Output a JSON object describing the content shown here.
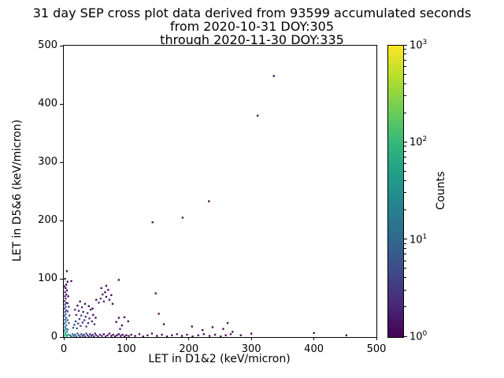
{
  "chart_data": {
    "type": "scatter",
    "title_lines": [
      "31 day SEP cross plot data derived from 93599 accumulated seconds",
      "from 2020-10-31 DOY:305",
      "through 2020-11-30 DOY:335"
    ],
    "xlabel": "LET in D1&2 (keV/micron)",
    "ylabel": "LET in D5&6 (keV/micron)",
    "xlim": [
      0,
      500
    ],
    "ylim": [
      0,
      500
    ],
    "xticks": [
      0,
      100,
      200,
      300,
      400,
      500
    ],
    "yticks": [
      0,
      100,
      200,
      300,
      400,
      500
    ],
    "grid": false,
    "colorbar": {
      "label": "Counts",
      "scale": "log",
      "min": 1,
      "max": 1000,
      "tick_exponents": [
        0,
        1,
        2,
        3
      ],
      "colormap": [
        "#440154",
        "#482878",
        "#3e4a89",
        "#31688e",
        "#26828e",
        "#1f9e89",
        "#35b779",
        "#6dcd59",
        "#b4de2c",
        "#fde725"
      ]
    },
    "points": [
      [
        1,
        2,
        120
      ],
      [
        3,
        4,
        70
      ],
      [
        2,
        7,
        50
      ],
      [
        5,
        2,
        60
      ],
      [
        7,
        4,
        30
      ],
      [
        1,
        11,
        30
      ],
      [
        3,
        14,
        22
      ],
      [
        5,
        9,
        25
      ],
      [
        2,
        17,
        18
      ],
      [
        4,
        20,
        14
      ],
      [
        1,
        23,
        12
      ],
      [
        3,
        26,
        10
      ],
      [
        6,
        13,
        12
      ],
      [
        2,
        30,
        9
      ],
      [
        4,
        33,
        8
      ],
      [
        1,
        36,
        7
      ],
      [
        3,
        39,
        6
      ],
      [
        6,
        29,
        6
      ],
      [
        2,
        43,
        5
      ],
      [
        4,
        46,
        5
      ],
      [
        1,
        49,
        4
      ],
      [
        3,
        52,
        4
      ],
      [
        6,
        44,
        3
      ],
      [
        2,
        56,
        3
      ],
      [
        4,
        59,
        3
      ],
      [
        1,
        62,
        3
      ],
      [
        3,
        66,
        2
      ],
      [
        6,
        58,
        2
      ],
      [
        2,
        70,
        2
      ],
      [
        4,
        73,
        2
      ],
      [
        2,
        77,
        2
      ],
      [
        5,
        80,
        1
      ],
      [
        3,
        84,
        1
      ],
      [
        1,
        87,
        1
      ],
      [
        4,
        90,
        1
      ],
      [
        7,
        70,
        1
      ],
      [
        8,
        52,
        2
      ],
      [
        8,
        24,
        6
      ],
      [
        9,
        37,
        3
      ],
      [
        6,
        95,
        1
      ],
      [
        12,
        96,
        1
      ],
      [
        5,
        113,
        1
      ],
      [
        2,
        100,
        1
      ],
      [
        10,
        3,
        18
      ],
      [
        12,
        1,
        14
      ],
      [
        14,
        5,
        11
      ],
      [
        16,
        2,
        10
      ],
      [
        18,
        4,
        8
      ],
      [
        20,
        1,
        9
      ],
      [
        22,
        6,
        7
      ],
      [
        24,
        3,
        6
      ],
      [
        26,
        1,
        6
      ],
      [
        28,
        5,
        5
      ],
      [
        30,
        2,
        5
      ],
      [
        32,
        4,
        4
      ],
      [
        34,
        1,
        4
      ],
      [
        36,
        6,
        4
      ],
      [
        38,
        3,
        3
      ],
      [
        40,
        1,
        4
      ],
      [
        42,
        5,
        3
      ],
      [
        44,
        2,
        3
      ],
      [
        46,
        4,
        3
      ],
      [
        48,
        1,
        2
      ],
      [
        50,
        6,
        2
      ],
      [
        52,
        3,
        2
      ],
      [
        55,
        1,
        2
      ],
      [
        58,
        4,
        2
      ],
      [
        61,
        2,
        2
      ],
      [
        64,
        5,
        1
      ],
      [
        67,
        1,
        2
      ],
      [
        70,
        3,
        1
      ],
      [
        73,
        6,
        1
      ],
      [
        76,
        2,
        1
      ],
      [
        79,
        4,
        1
      ],
      [
        82,
        1,
        1
      ],
      [
        85,
        3,
        1
      ],
      [
        88,
        5,
        1
      ],
      [
        91,
        2,
        1
      ],
      [
        94,
        4,
        1
      ],
      [
        97,
        1,
        1
      ],
      [
        100,
        3,
        1
      ],
      [
        104,
        2,
        1
      ],
      [
        108,
        4,
        1
      ],
      [
        114,
        2,
        1
      ],
      [
        121,
        5,
        1
      ],
      [
        127,
        1,
        1
      ],
      [
        134,
        3,
        1
      ],
      [
        141,
        6,
        1
      ],
      [
        149,
        2,
        1
      ],
      [
        157,
        4,
        1
      ],
      [
        165,
        1,
        1
      ],
      [
        173,
        3,
        1
      ],
      [
        181,
        5,
        1
      ],
      [
        189,
        2,
        1
      ],
      [
        197,
        4,
        1
      ],
      [
        206,
        1,
        1
      ],
      [
        215,
        3,
        1
      ],
      [
        224,
        5,
        1
      ],
      [
        233,
        2,
        1
      ],
      [
        242,
        4,
        1
      ],
      [
        251,
        1,
        1
      ],
      [
        259,
        3,
        1
      ],
      [
        267,
        5,
        1
      ],
      [
        283,
        3,
        1
      ],
      [
        300,
        6,
        1
      ],
      [
        400,
        7,
        1
      ],
      [
        452,
        3,
        1
      ],
      [
        15,
        16,
        7
      ],
      [
        17,
        21,
        5
      ],
      [
        19,
        27,
        4
      ],
      [
        21,
        15,
        5
      ],
      [
        23,
        23,
        4
      ],
      [
        25,
        31,
        3
      ],
      [
        27,
        19,
        4
      ],
      [
        28,
        37,
        3
      ],
      [
        30,
        25,
        3
      ],
      [
        31,
        43,
        2
      ],
      [
        33,
        29,
        3
      ],
      [
        35,
        35,
        2
      ],
      [
        36,
        18,
        3
      ],
      [
        38,
        41,
        2
      ],
      [
        39,
        24,
        2
      ],
      [
        41,
        32,
        2
      ],
      [
        43,
        47,
        1
      ],
      [
        45,
        27,
        2
      ],
      [
        47,
        38,
        1
      ],
      [
        49,
        22,
        2
      ],
      [
        51,
        33,
        1
      ],
      [
        20,
        38,
        3
      ],
      [
        24,
        45,
        2
      ],
      [
        29,
        51,
        2
      ],
      [
        34,
        57,
        1
      ],
      [
        40,
        53,
        1
      ],
      [
        46,
        49,
        1
      ],
      [
        18,
        47,
        2
      ],
      [
        22,
        54,
        1
      ],
      [
        26,
        61,
        1
      ],
      [
        56,
        59,
        2
      ],
      [
        59,
        66,
        2
      ],
      [
        62,
        73,
        1
      ],
      [
        64,
        61,
        2
      ],
      [
        66,
        77,
        1
      ],
      [
        68,
        69,
        1
      ],
      [
        71,
        81,
        1
      ],
      [
        73,
        64,
        1
      ],
      [
        76,
        72,
        1
      ],
      [
        78,
        57,
        1
      ],
      [
        60,
        84,
        1
      ],
      [
        68,
        88,
        1
      ],
      [
        52,
        64,
        1
      ],
      [
        84,
        26,
        1
      ],
      [
        88,
        33,
        1
      ],
      [
        93,
        20,
        1
      ],
      [
        97,
        34,
        1
      ],
      [
        90,
        14,
        2
      ],
      [
        103,
        27,
        1
      ],
      [
        88,
        98,
        1
      ],
      [
        147,
        75,
        1
      ],
      [
        152,
        40,
        1
      ],
      [
        160,
        22,
        1
      ],
      [
        205,
        18,
        1
      ],
      [
        222,
        12,
        1
      ],
      [
        238,
        17,
        1
      ],
      [
        255,
        14,
        1
      ],
      [
        262,
        24,
        1
      ],
      [
        270,
        9,
        1
      ],
      [
        142,
        197,
        1
      ],
      [
        190,
        205,
        1
      ],
      [
        232,
        233,
        1
      ],
      [
        310,
        380,
        1
      ],
      [
        336,
        448,
        1
      ]
    ]
  }
}
